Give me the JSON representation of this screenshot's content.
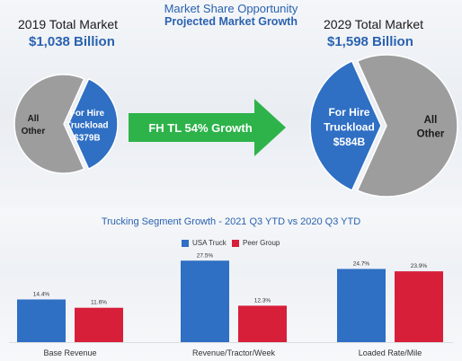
{
  "header": {
    "title": "Market Share Opportunity",
    "subtitle": "Projected Market Growth"
  },
  "market_2019": {
    "label": "2019 Total Market",
    "value": "$1,038  Billion",
    "other_line1": "All",
    "other_line2": "Other",
    "forhire_line1": "For Hire",
    "forhire_line2": "Truckload",
    "forhire_value": "$379B"
  },
  "market_2029": {
    "label": "2029 Total Market",
    "value": "$1,598 Billion",
    "other_line1": "All",
    "other_line2": "Other",
    "forhire_line1": "For Hire",
    "forhire_line2": "Truckload",
    "forhire_value": "$584B"
  },
  "growth_arrow": {
    "label": "FH TL 54% Growth",
    "color": "#2db34a"
  },
  "colors": {
    "blue": "#2f6fc4",
    "grey": "#9d9d9d",
    "red": "#d71f3a",
    "title_blue": "#2a62b0"
  },
  "chart_data": [
    {
      "type": "pie",
      "title": "2019 Total Market",
      "slices": [
        {
          "label": "All Other",
          "value": 659
        },
        {
          "label": "For Hire Truckload",
          "value": 379
        }
      ]
    },
    {
      "type": "pie",
      "title": "2029 Total Market",
      "slices": [
        {
          "label": "All Other",
          "value": 1014
        },
        {
          "label": "For Hire Truckload",
          "value": 584
        }
      ]
    },
    {
      "type": "bar",
      "title": "Trucking Segment Growth -  2021 Q3 YTD vs 2020 Q3 YTD",
      "categories": [
        "Base Revenue",
        "Revenue/Tractor/Week",
        "Loaded Rate/Mile"
      ],
      "series": [
        {
          "name": "USA Truck",
          "values": [
            14.4,
            27.5,
            24.7
          ],
          "labels": [
            "14.4%",
            "27.5%",
            "24.7%"
          ]
        },
        {
          "name": "Peer Group",
          "values": [
            11.6,
            12.3,
            23.9
          ],
          "labels": [
            "11.6%",
            "12.3%",
            "23.9%"
          ]
        }
      ],
      "legend": "top-center",
      "grid": false,
      "ylim": [
        0,
        30
      ]
    }
  ]
}
